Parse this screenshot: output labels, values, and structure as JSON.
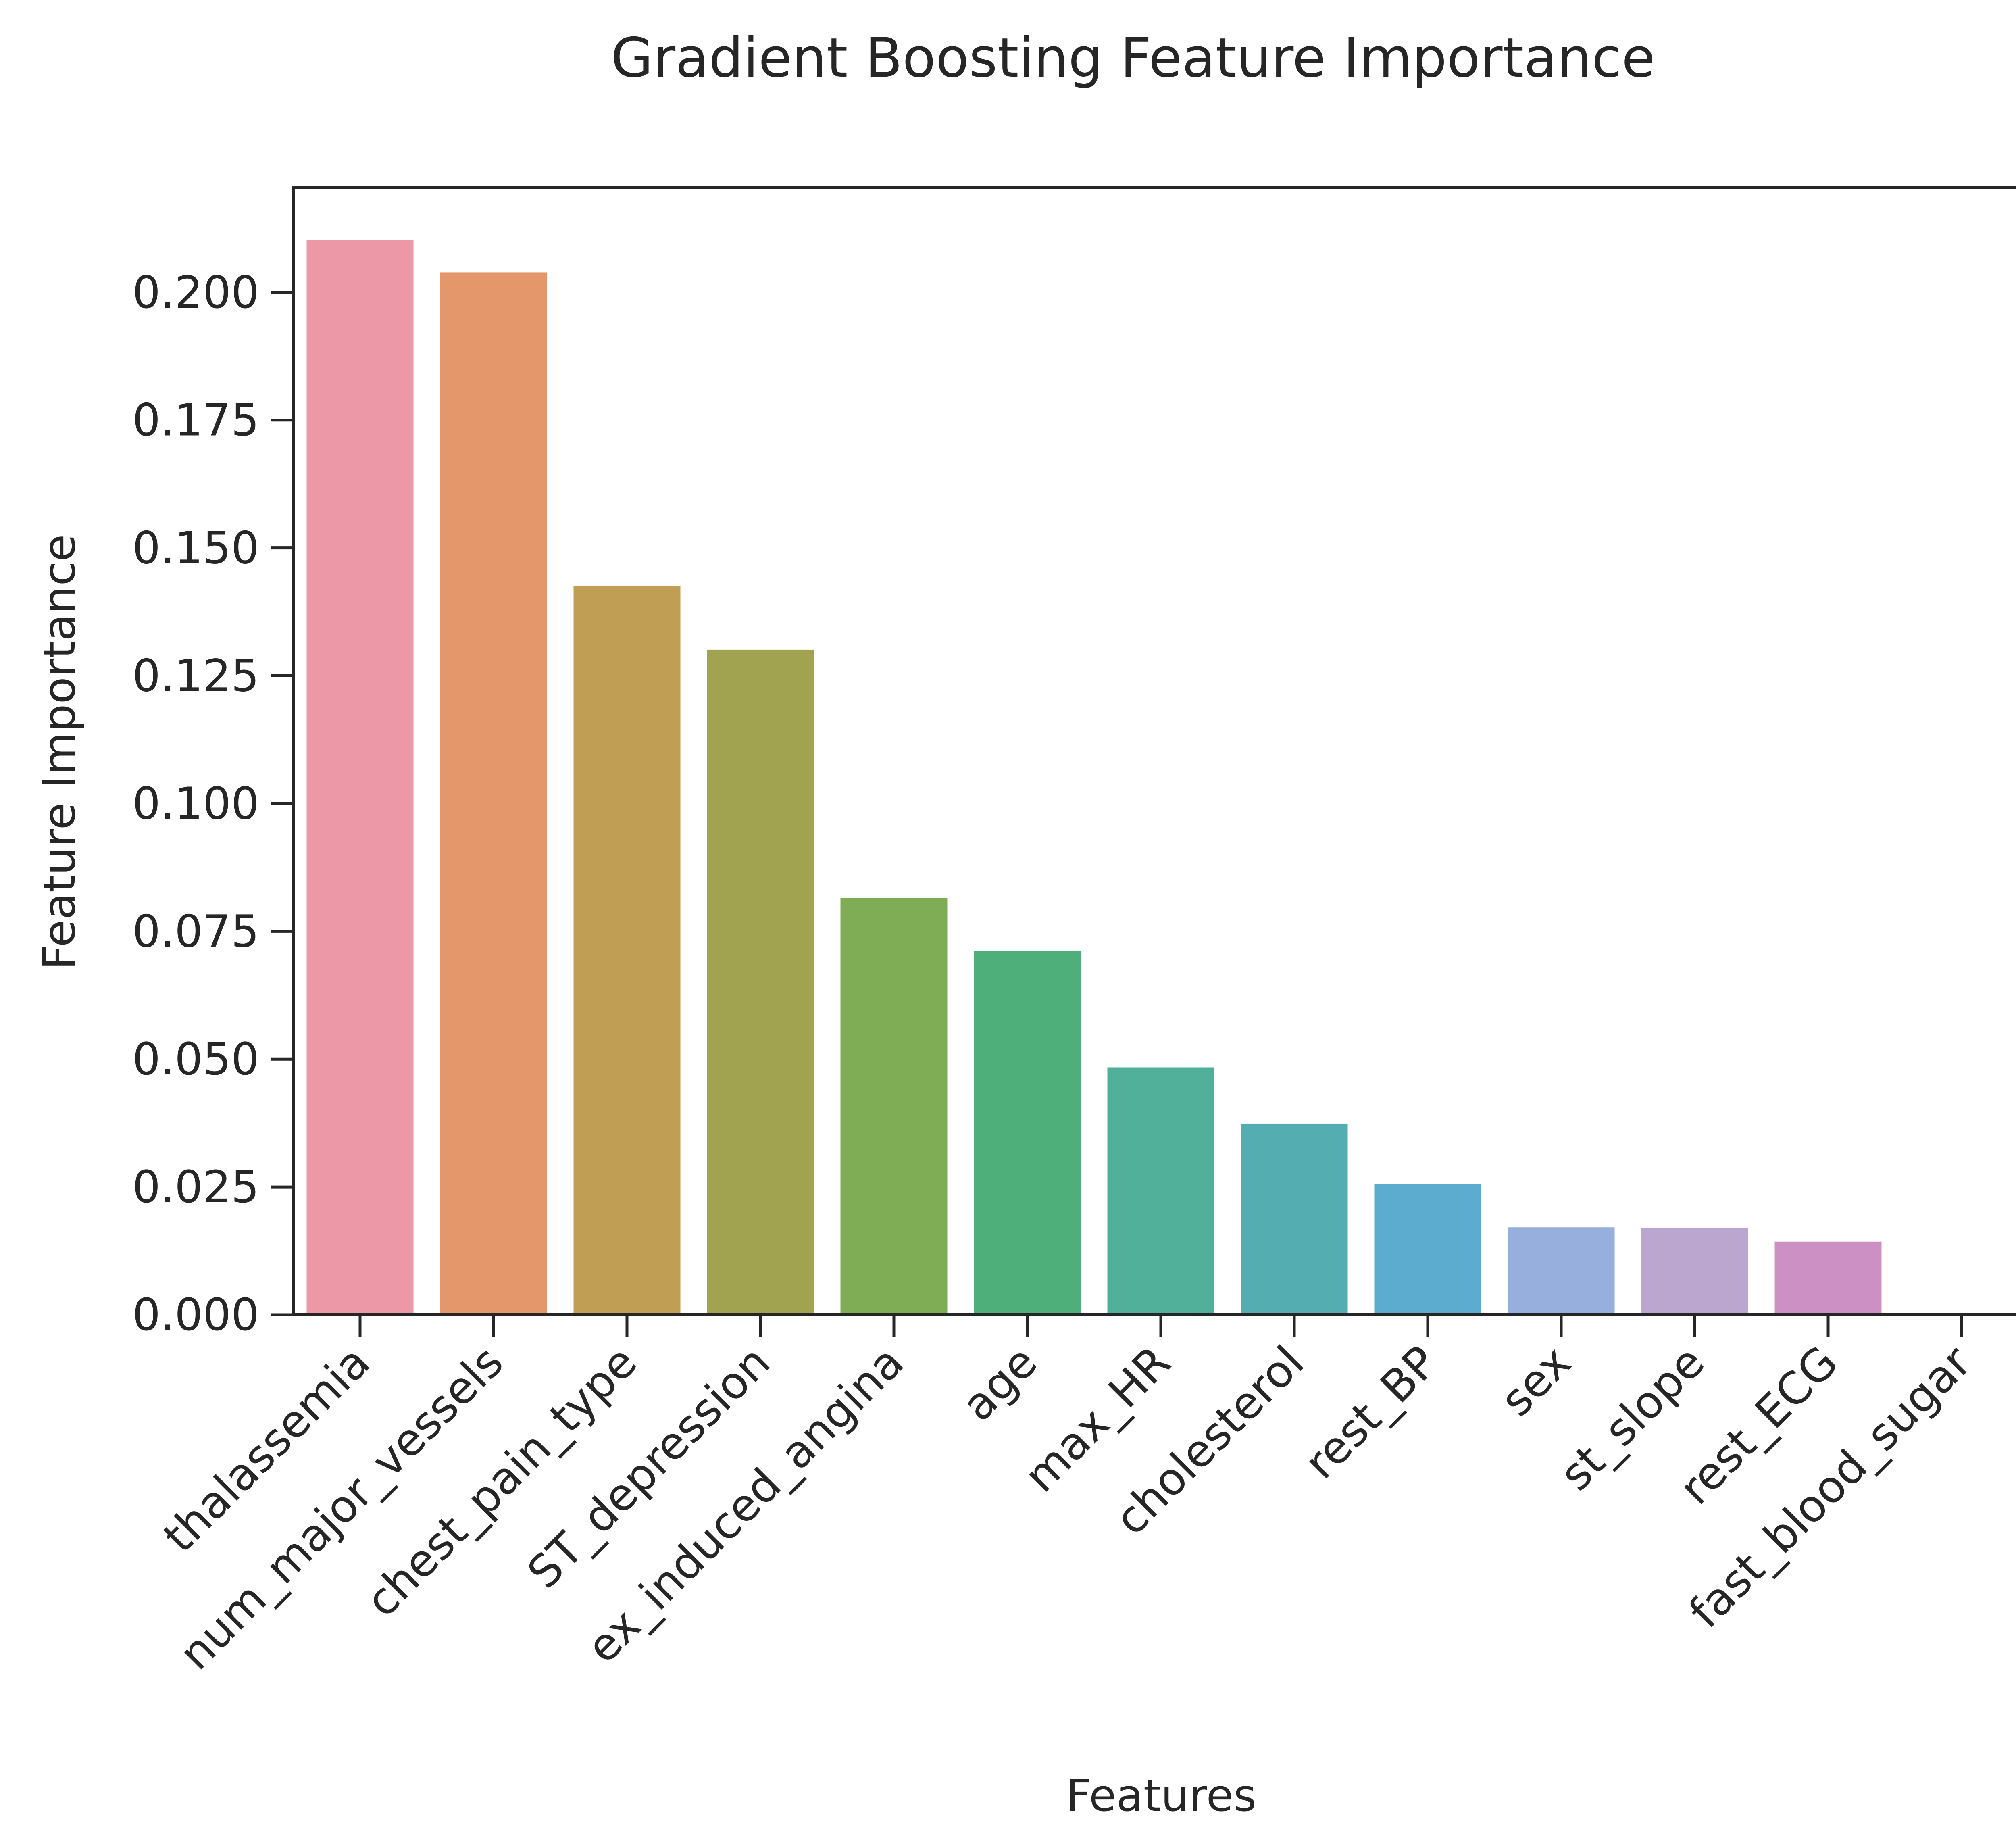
{
  "chart_data": {
    "type": "bar",
    "title": "Gradient Boosting Feature Importance",
    "xlabel": "Features",
    "ylabel": "Feature Importance",
    "categories": [
      "thalassemia",
      "num_major_vessels",
      "chest_pain_type",
      "ST_depression",
      "ex_induced_angina",
      "age",
      "max_HR",
      "cholesterol",
      "rest_BP",
      "sex",
      "st_slope",
      "rest_ECG",
      "fast_blood_sugar"
    ],
    "values": [
      0.2102,
      0.2039,
      0.1426,
      0.1301,
      0.0815,
      0.0712,
      0.0484,
      0.0374,
      0.0255,
      0.0171,
      0.0169,
      0.0143,
      0.0
    ],
    "colors": [
      "#ed98a6",
      "#e4976b",
      "#c09e53",
      "#a2a350",
      "#7fad55",
      "#4faf7a",
      "#51b09a",
      "#53adb1",
      "#5bacce",
      "#96afdc",
      "#bba6d0",
      "#cc90c4",
      "#e98ec0"
    ],
    "yticks": [
      "0.000",
      "0.025",
      "0.050",
      "0.075",
      "0.100",
      "0.125",
      "0.150",
      "0.175",
      "0.200"
    ],
    "ylim": [
      0,
      0.2205
    ],
    "grid": false
  }
}
